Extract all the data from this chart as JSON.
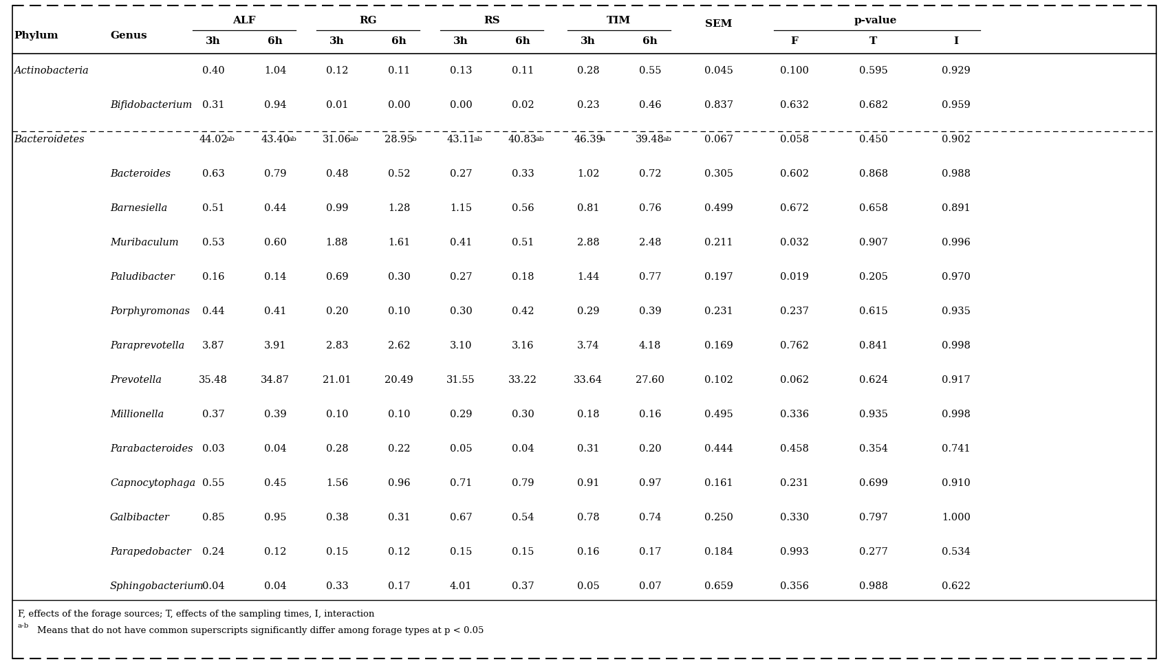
{
  "footnote1": "F, effects of the forage sources; T, effects of the sampling times, I, interaction",
  "footnote2": "Means that do not have common superscripts significantly differ among forage types at p < 0.05",
  "col_headers": [
    "Phylum",
    "Genus",
    "3h",
    "6h",
    "3h",
    "6h",
    "3h",
    "6h",
    "3h",
    "6h",
    "SEM",
    "F",
    "T",
    "I"
  ],
  "group_headers": [
    {
      "label": "ALF",
      "start": 2,
      "end": 3
    },
    {
      "label": "RG",
      "start": 4,
      "end": 5
    },
    {
      "label": "RS",
      "start": 6,
      "end": 7
    },
    {
      "label": "TIM",
      "start": 8,
      "end": 9
    },
    {
      "label": "SEM",
      "start": 10,
      "end": 10
    },
    {
      "label": "p-value",
      "start": 11,
      "end": 13
    }
  ],
  "rows": [
    {
      "phylum": "Actinobacteria",
      "genus": "",
      "vals": [
        "0.40",
        "1.04",
        "0.12",
        "0.11",
        "0.13",
        "0.11",
        "0.28",
        "0.55",
        "0.045",
        "0.100",
        "0.595",
        "0.929"
      ],
      "sups": [
        "",
        "",
        "",
        "",
        "",
        "",
        "",
        "",
        "",
        "",
        "",
        ""
      ]
    },
    {
      "phylum": "",
      "genus": "Bifidobacterium",
      "vals": [
        "0.31",
        "0.94",
        "0.01",
        "0.00",
        "0.00",
        "0.02",
        "0.23",
        "0.46",
        "0.837",
        "0.632",
        "0.682",
        "0.959"
      ],
      "sups": [
        "",
        "",
        "",
        "",
        "",
        "",
        "",
        "",
        "",
        "",
        "",
        ""
      ]
    },
    {
      "phylum": "Bacteroidetes",
      "genus": "",
      "vals": [
        "44.02",
        "43.40",
        "31.06",
        "28.95",
        "43.11",
        "40.83",
        "46.39",
        "39.48",
        "0.067",
        "0.058",
        "0.450",
        "0.902"
      ],
      "sups": [
        "ab",
        "ab",
        "ab",
        "b",
        "ab",
        "ab",
        "a",
        "ab",
        "",
        "",
        "",
        ""
      ]
    },
    {
      "phylum": "",
      "genus": "Bacteroides",
      "vals": [
        "0.63",
        "0.79",
        "0.48",
        "0.52",
        "0.27",
        "0.33",
        "1.02",
        "0.72",
        "0.305",
        "0.602",
        "0.868",
        "0.988"
      ],
      "sups": [
        "",
        "",
        "",
        "",
        "",
        "",
        "",
        "",
        "",
        "",
        "",
        ""
      ]
    },
    {
      "phylum": "",
      "genus": "Barnesiella",
      "vals": [
        "0.51",
        "0.44",
        "0.99",
        "1.28",
        "1.15",
        "0.56",
        "0.81",
        "0.76",
        "0.499",
        "0.672",
        "0.658",
        "0.891"
      ],
      "sups": [
        "",
        "",
        "",
        "",
        "",
        "",
        "",
        "",
        "",
        "",
        "",
        ""
      ]
    },
    {
      "phylum": "",
      "genus": "Muribaculum",
      "vals": [
        "0.53",
        "0.60",
        "1.88",
        "1.61",
        "0.41",
        "0.51",
        "2.88",
        "2.48",
        "0.211",
        "0.032",
        "0.907",
        "0.996"
      ],
      "sups": [
        "",
        "",
        "",
        "",
        "",
        "",
        "",
        "",
        "",
        "",
        "",
        ""
      ]
    },
    {
      "phylum": "",
      "genus": "Paludibacter",
      "vals": [
        "0.16",
        "0.14",
        "0.69",
        "0.30",
        "0.27",
        "0.18",
        "1.44",
        "0.77",
        "0.197",
        "0.019",
        "0.205",
        "0.970"
      ],
      "sups": [
        "",
        "",
        "",
        "",
        "",
        "",
        "",
        "",
        "",
        "",
        "",
        ""
      ]
    },
    {
      "phylum": "",
      "genus": "Porphyromonas",
      "vals": [
        "0.44",
        "0.41",
        "0.20",
        "0.10",
        "0.30",
        "0.42",
        "0.29",
        "0.39",
        "0.231",
        "0.237",
        "0.615",
        "0.935"
      ],
      "sups": [
        "",
        "",
        "",
        "",
        "",
        "",
        "",
        "",
        "",
        "",
        "",
        ""
      ]
    },
    {
      "phylum": "",
      "genus": "Paraprevotella",
      "vals": [
        "3.87",
        "3.91",
        "2.83",
        "2.62",
        "3.10",
        "3.16",
        "3.74",
        "4.18",
        "0.169",
        "0.762",
        "0.841",
        "0.998"
      ],
      "sups": [
        "",
        "",
        "",
        "",
        "",
        "",
        "",
        "",
        "",
        "",
        "",
        ""
      ]
    },
    {
      "phylum": "",
      "genus": "Prevotella",
      "vals": [
        "35.48",
        "34.87",
        "21.01",
        "20.49",
        "31.55",
        "33.22",
        "33.64",
        "27.60",
        "0.102",
        "0.062",
        "0.624",
        "0.917"
      ],
      "sups": [
        "",
        "",
        "",
        "",
        "",
        "",
        "",
        "",
        "",
        "",
        "",
        ""
      ]
    },
    {
      "phylum": "",
      "genus": "Millionella",
      "vals": [
        "0.37",
        "0.39",
        "0.10",
        "0.10",
        "0.29",
        "0.30",
        "0.18",
        "0.16",
        "0.495",
        "0.336",
        "0.935",
        "0.998"
      ],
      "sups": [
        "",
        "",
        "",
        "",
        "",
        "",
        "",
        "",
        "",
        "",
        "",
        ""
      ]
    },
    {
      "phylum": "",
      "genus": "Parabacteroides",
      "vals": [
        "0.03",
        "0.04",
        "0.28",
        "0.22",
        "0.05",
        "0.04",
        "0.31",
        "0.20",
        "0.444",
        "0.458",
        "0.354",
        "0.741"
      ],
      "sups": [
        "",
        "",
        "",
        "",
        "",
        "",
        "",
        "",
        "",
        "",
        "",
        ""
      ]
    },
    {
      "phylum": "",
      "genus": "Capnocytophaga",
      "vals": [
        "0.55",
        "0.45",
        "1.56",
        "0.96",
        "0.71",
        "0.79",
        "0.91",
        "0.97",
        "0.161",
        "0.231",
        "0.699",
        "0.910"
      ],
      "sups": [
        "",
        "",
        "",
        "",
        "",
        "",
        "",
        "",
        "",
        "",
        "",
        ""
      ]
    },
    {
      "phylum": "",
      "genus": "Galbibacter",
      "vals": [
        "0.85",
        "0.95",
        "0.38",
        "0.31",
        "0.67",
        "0.54",
        "0.78",
        "0.74",
        "0.250",
        "0.330",
        "0.797",
        "1.000"
      ],
      "sups": [
        "",
        "",
        "",
        "",
        "",
        "",
        "",
        "",
        "",
        "",
        "",
        ""
      ]
    },
    {
      "phylum": "",
      "genus": "Parapedobacter",
      "vals": [
        "0.24",
        "0.12",
        "0.15",
        "0.12",
        "0.15",
        "0.15",
        "0.16",
        "0.17",
        "0.184",
        "0.993",
        "0.277",
        "0.534"
      ],
      "sups": [
        "",
        "",
        "",
        "",
        "",
        "",
        "",
        "",
        "",
        "",
        "",
        ""
      ]
    },
    {
      "phylum": "",
      "genus": "Sphingobacterium",
      "vals": [
        "0.04",
        "0.04",
        "0.33",
        "0.17",
        "4.01",
        "0.37",
        "0.05",
        "0.07",
        "0.659",
        "0.356",
        "0.988",
        "0.622"
      ],
      "sups": [
        "",
        "",
        "",
        "",
        "",
        "",
        "",
        "",
        "",
        "",
        "",
        ""
      ]
    }
  ],
  "figsize": [
    16.99,
    9.66
  ],
  "dpi": 100,
  "fontsize": 10.5,
  "fontsize_header": 11,
  "fontsize_sup": 7.5,
  "fontsize_footnote": 9.5,
  "bg_color": "#ffffff"
}
